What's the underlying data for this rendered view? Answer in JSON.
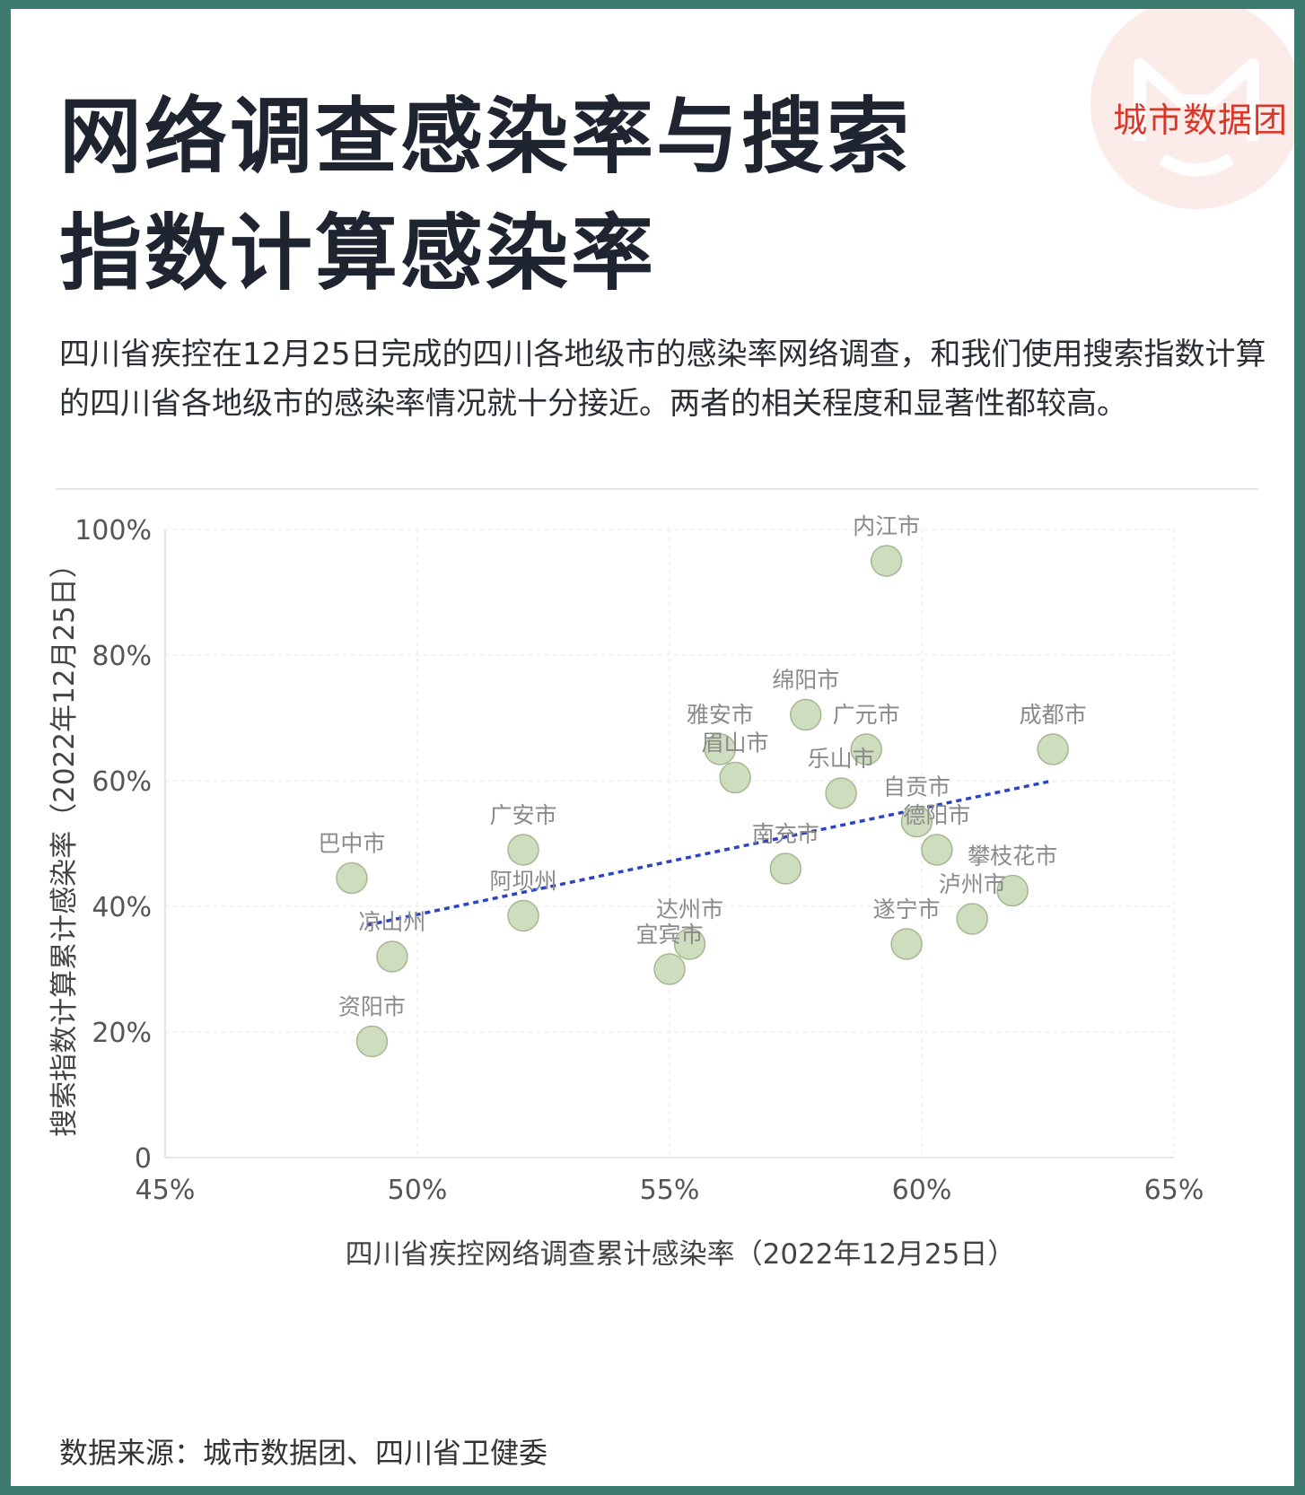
{
  "brand": {
    "name": "城市数据团",
    "logo_icon": "cat-face-logo-icon",
    "color": "#d9372a",
    "circle_color": "#fbecea"
  },
  "title": "网络调查感染率与搜索指数计算感染率",
  "subtitle": "四川省疾控在12月25日完成的四川各地级市的感染率网络调查，和我们使用搜索指数计算的四川省各地级市的感染率情况就十分接近。两者的相关程度和显著性都较高。",
  "source": "数据来源：城市数据团、四川省卫健委",
  "chart_data": {
    "type": "scatter",
    "xlabel": "四川省疾控网络调查累计感染率（2022年12月25日）",
    "ylabel": "搜索指数计算累计感染率（2022年12月25日）",
    "xlim": [
      45,
      65
    ],
    "ylim": [
      0,
      100
    ],
    "x_ticks": [
      45,
      50,
      55,
      60,
      65
    ],
    "x_tick_labels": [
      "45%",
      "50%",
      "55%",
      "60%",
      "65%"
    ],
    "y_ticks": [
      0,
      20,
      40,
      60,
      80,
      100
    ],
    "y_tick_labels": [
      "0",
      "20%",
      "40%",
      "60%",
      "80%",
      "100%"
    ],
    "grid": true,
    "point_color": "#c9d9b6",
    "point_stroke": "#a4b792",
    "trend_color": "#2b44c4",
    "points": [
      {
        "label": "内江市",
        "x": 59.3,
        "y": 95
      },
      {
        "label": "绵阳市",
        "x": 57.7,
        "y": 70.5
      },
      {
        "label": "广元市",
        "x": 58.9,
        "y": 65
      },
      {
        "label": "成都市",
        "x": 62.6,
        "y": 65
      },
      {
        "label": "雅安市",
        "x": 56.0,
        "y": 65
      },
      {
        "label": "眉山市",
        "x": 56.3,
        "y": 60.5
      },
      {
        "label": "乐山市",
        "x": 58.4,
        "y": 58
      },
      {
        "label": "自贡市",
        "x": 59.9,
        "y": 53.5
      },
      {
        "label": "德阳市",
        "x": 60.3,
        "y": 49
      },
      {
        "label": "南充市",
        "x": 57.3,
        "y": 46
      },
      {
        "label": "攀枝花市",
        "x": 61.8,
        "y": 42.5
      },
      {
        "label": "泸州市",
        "x": 61.0,
        "y": 38
      },
      {
        "label": "遂宁市",
        "x": 59.7,
        "y": 34
      },
      {
        "label": "广安市",
        "x": 52.1,
        "y": 49
      },
      {
        "label": "阿坝州",
        "x": 52.1,
        "y": 38.5
      },
      {
        "label": "巴中市",
        "x": 48.7,
        "y": 44.5
      },
      {
        "label": "凉山州",
        "x": 49.5,
        "y": 32
      },
      {
        "label": "资阳市",
        "x": 49.1,
        "y": 18.5
      },
      {
        "label": "达州市",
        "x": 55.4,
        "y": 34
      },
      {
        "label": "宜宾市",
        "x": 55.0,
        "y": 30
      }
    ],
    "trendline": {
      "x": [
        49.0,
        62.6
      ],
      "y": [
        37,
        60
      ]
    }
  }
}
